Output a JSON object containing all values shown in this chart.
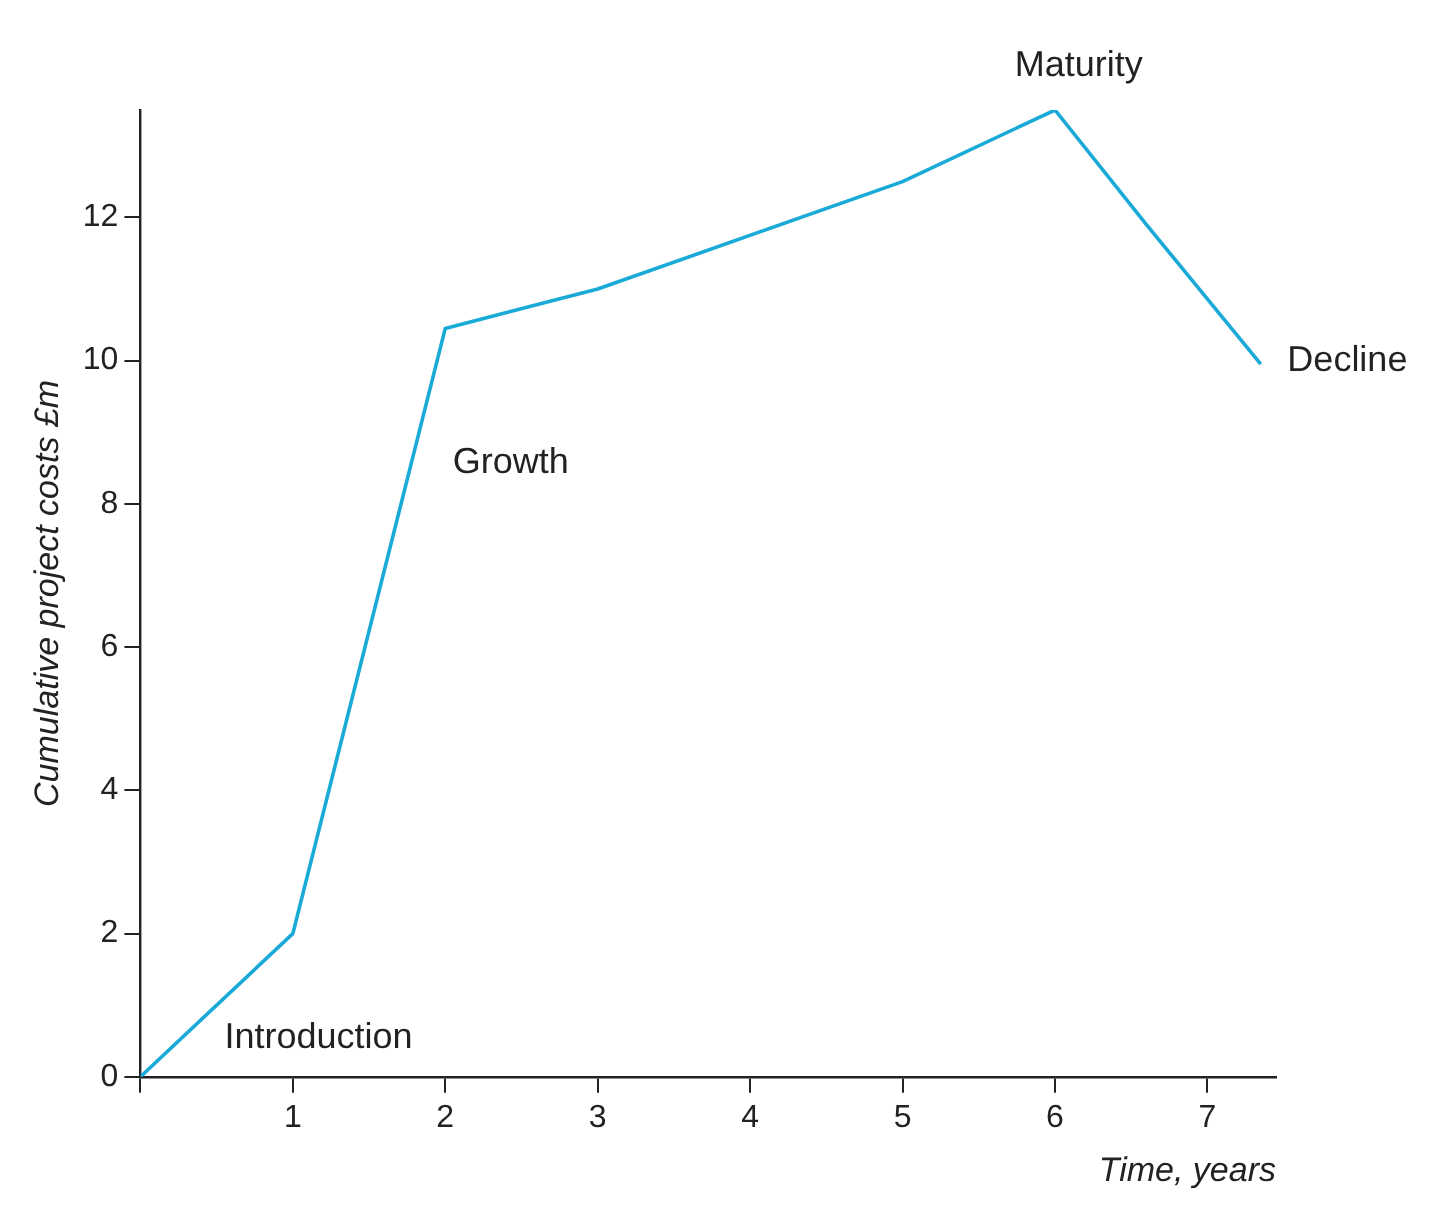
{
  "chart_data": {
    "type": "line",
    "xlabel": "Time, years",
    "ylabel": "Cumulative project costs £m",
    "x": [
      0,
      1,
      2,
      3,
      5,
      6,
      6.6,
      7.35
    ],
    "series": [
      {
        "color": "#1aaad8",
        "values": [
          0,
          2,
          10.45,
          11,
          12.5,
          13.5,
          11.9,
          9.95
        ]
      }
    ],
    "xlim": [
      0,
      7.45
    ],
    "xticks": [
      {
        "value": 0,
        "label": null
      },
      1,
      2,
      3,
      4,
      5,
      6,
      7
    ],
    "ylim": [
      0,
      13.5
    ],
    "yticks": [
      0,
      2,
      4,
      6,
      8,
      10,
      12
    ],
    "grid": false,
    "legend": false,
    "marker": "none",
    "line_style": "solid",
    "annotations": [
      "Introduction",
      "Growth",
      "Maturity",
      "Decline"
    ]
  }
}
